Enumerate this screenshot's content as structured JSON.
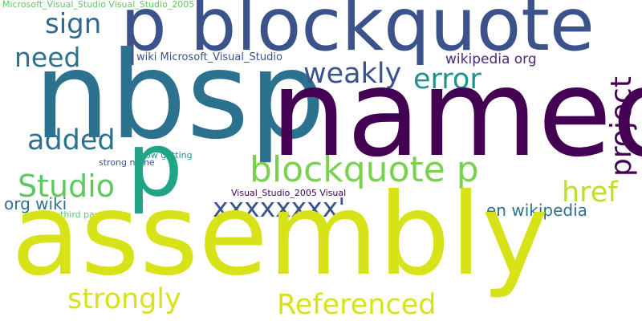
{
  "words": [
    {
      "text": "Microsoft_Visual_Studio Visual_Studio_2005",
      "color": "#5ec962"
    },
    {
      "text": "p blockquote",
      "color": "#3b528b"
    },
    {
      "text": "sign",
      "color": "#31688e"
    },
    {
      "text": "need",
      "color": "#2c728e"
    },
    {
      "text": "wiki Microsoft_Visual_Studio",
      "color": "#3b528b"
    },
    {
      "text": "wikipedia org",
      "color": "#482878"
    },
    {
      "text": "nbsp",
      "color": "#2c728e"
    },
    {
      "text": "weakly",
      "color": "#3b528b"
    },
    {
      "text": "error",
      "color": "#21918c"
    },
    {
      "text": "named",
      "color": "#440154"
    },
    {
      "text": "project",
      "color": "#440154"
    },
    {
      "text": "added",
      "color": "#2c728e"
    },
    {
      "text": "now getting",
      "color": "#21918c"
    },
    {
      "text": "strong name",
      "color": "#3b528b"
    },
    {
      "text": "blockquote p",
      "color": "#7ad151"
    },
    {
      "text": "p",
      "color": "#20a486"
    },
    {
      "text": "Studio",
      "color": "#5ec962"
    },
    {
      "text": "href",
      "color": "#bddf26"
    },
    {
      "text": "org wiki",
      "color": "#2c728e"
    },
    {
      "text": "Visual_Studio_2005 Visual",
      "color": "#440154"
    },
    {
      "text": "xxxxxxxx'",
      "color": "#3b528b"
    },
    {
      "text": "en wikipedia",
      "color": "#2c728e"
    },
    {
      "text": "third party",
      "color": "#5ec962"
    },
    {
      "text": "assembly",
      "color": "#d8e219"
    },
    {
      "text": "strongly",
      "color": "#d8e219"
    },
    {
      "text": "Referenced",
      "color": "#d8e219"
    }
  ]
}
